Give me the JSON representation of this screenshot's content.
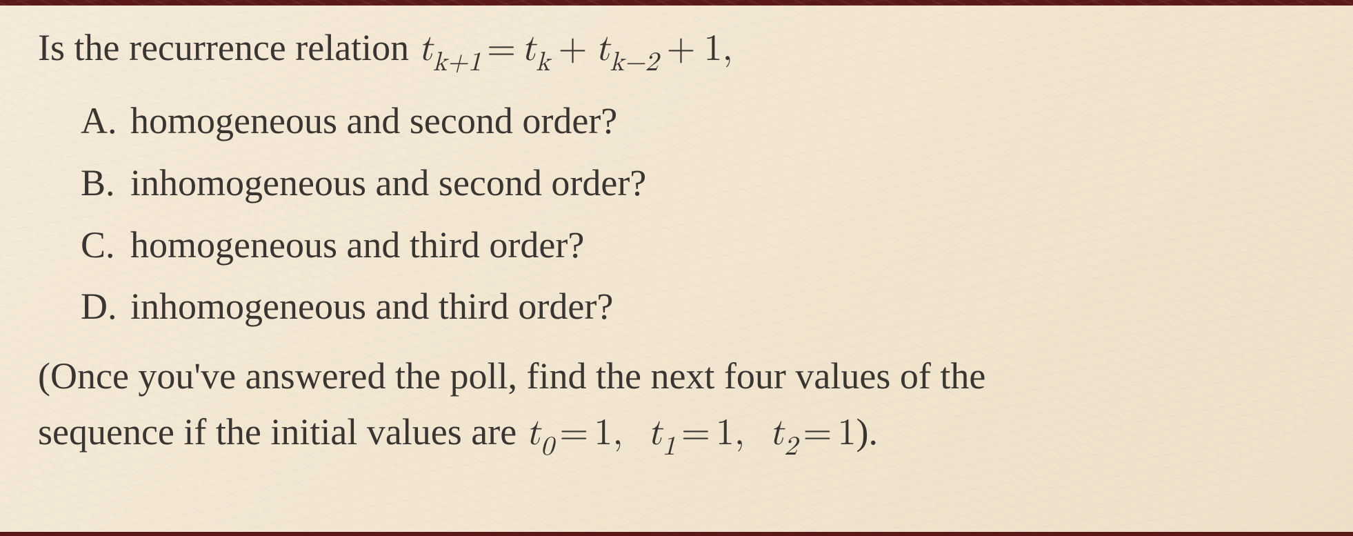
{
  "colors": {
    "background_gradient_start": "#f5ead8",
    "background_gradient_mid": "#f2e6d0",
    "background_gradient_end": "#eee0c8",
    "text_color": "#3a3530",
    "border_color": "#5a1818",
    "moire_tint_1": "#b4c8dc",
    "moire_tint_2": "#c8b4d2"
  },
  "typography": {
    "body_fontsize": 54,
    "sub_fontsize_ratio": 0.72,
    "line_height": 1.5,
    "font_family": "Computer Modern serif"
  },
  "question": {
    "intro": "Is the recurrence relation ",
    "recurrence_lhs_var": "t",
    "recurrence_lhs_sub": "k+1",
    "recurrence_rhs_t1_var": "t",
    "recurrence_rhs_t1_sub": "k",
    "recurrence_rhs_t2_var": "t",
    "recurrence_rhs_t2_sub": "k−2",
    "recurrence_rhs_const": "1",
    "trailing_comma": ","
  },
  "options": [
    {
      "letter": "A.",
      "text": "homogeneous and second order?"
    },
    {
      "letter": "B.",
      "text": "inhomogeneous and second order?"
    },
    {
      "letter": "C.",
      "text": "homogeneous and third order?"
    },
    {
      "letter": "D.",
      "text": "inhomogeneous and third order?"
    }
  ],
  "followup": {
    "line1_prefix": "(Once you've answered the poll, find the next four values of the",
    "line2_prefix": "sequence if the initial values are ",
    "initials": [
      {
        "var": "t",
        "sub": "0",
        "val": "1"
      },
      {
        "var": "t",
        "sub": "1",
        "val": "1"
      },
      {
        "var": "t",
        "sub": "2",
        "val": "1"
      }
    ],
    "closing": ")."
  }
}
